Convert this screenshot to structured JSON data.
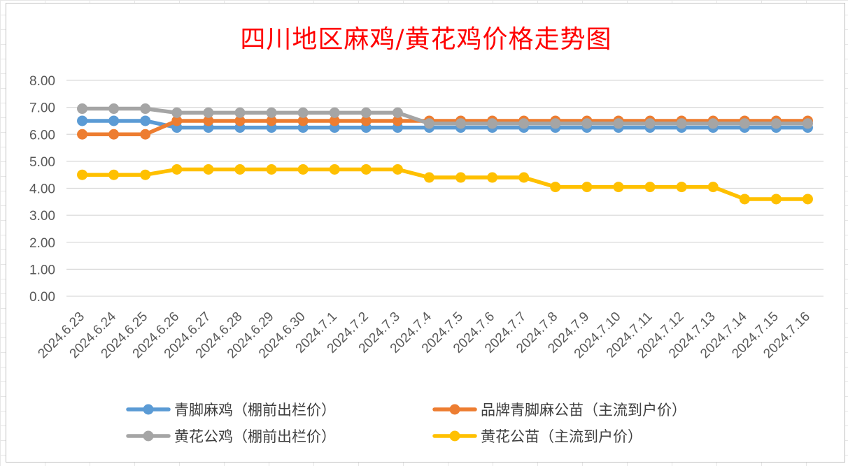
{
  "chart_data": {
    "type": "line",
    "title": "四川地区麻鸡/黄花鸡价格走势图",
    "categories": [
      "2024.6.23",
      "2024.6.24",
      "2024.6.25",
      "2024.6.26",
      "2024.6.27",
      "2024.6.28",
      "2024.6.29",
      "2024.6.30",
      "2024.7.1",
      "2024.7.2",
      "2024.7.3",
      "2024.7.4",
      "2024.7.5",
      "2024.7.6",
      "2024.7.7",
      "2024.7.8",
      "2024.7.9",
      "2024.7.10",
      "2024.7.11",
      "2024.7.12",
      "2024.7.13",
      "2024.7.14",
      "2024.7.15",
      "2024.7.16"
    ],
    "yticks": [
      "0.00",
      "1.00",
      "2.00",
      "3.00",
      "4.00",
      "5.00",
      "6.00",
      "7.00",
      "8.00"
    ],
    "ylim": [
      0,
      8
    ],
    "grid": "horizontal",
    "legend_position": "bottom",
    "series": [
      {
        "name": "青脚麻鸡（棚前出栏价）",
        "color": "#5b9bd5",
        "values": [
          6.5,
          6.5,
          6.5,
          6.25,
          6.25,
          6.25,
          6.25,
          6.25,
          6.25,
          6.25,
          6.25,
          6.25,
          6.25,
          6.25,
          6.25,
          6.25,
          6.25,
          6.25,
          6.25,
          6.25,
          6.25,
          6.25,
          6.25,
          6.25
        ]
      },
      {
        "name": "品牌青脚麻公苗（主流到户价）",
        "color": "#ed7d31",
        "values": [
          6.0,
          6.0,
          6.0,
          6.5,
          6.5,
          6.5,
          6.5,
          6.5,
          6.5,
          6.5,
          6.5,
          6.5,
          6.5,
          6.5,
          6.5,
          6.5,
          6.5,
          6.5,
          6.5,
          6.5,
          6.5,
          6.5,
          6.5,
          6.5
        ]
      },
      {
        "name": "黄花公鸡（棚前出栏价）",
        "color": "#a5a5a5",
        "values": [
          6.95,
          6.95,
          6.95,
          6.8,
          6.8,
          6.8,
          6.8,
          6.8,
          6.8,
          6.8,
          6.8,
          6.4,
          6.4,
          6.4,
          6.4,
          6.4,
          6.4,
          6.4,
          6.4,
          6.4,
          6.4,
          6.4,
          6.4,
          6.4
        ]
      },
      {
        "name": "黄花公苗（主流到户价）",
        "color": "#ffc000",
        "values": [
          4.5,
          4.5,
          4.5,
          4.7,
          4.7,
          4.7,
          4.7,
          4.7,
          4.7,
          4.7,
          4.7,
          4.4,
          4.4,
          4.4,
          4.4,
          4.05,
          4.05,
          4.05,
          4.05,
          4.05,
          4.05,
          3.6,
          3.6,
          3.6
        ]
      }
    ],
    "legend_order": [
      0,
      1,
      2,
      3
    ]
  }
}
